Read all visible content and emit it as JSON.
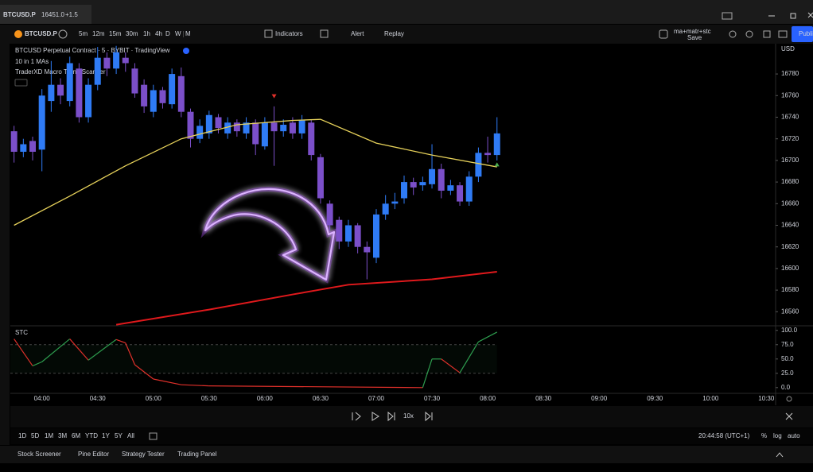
{
  "window_tab": {
    "symbol": "BTCUSD.P",
    "price": "16451.0",
    "change": "+1.5"
  },
  "toolbar": {
    "symbol": "BTCUSD.P",
    "intervals": [
      "5m",
      "12m",
      "15m",
      "30m",
      "1h",
      "4h",
      "D",
      "W",
      "M"
    ],
    "indicators": "Indicators",
    "alert": "Alert",
    "replay": "Replay",
    "layout_name": "ma+matr+stc",
    "layout_status": "Save",
    "publish": "Publi"
  },
  "chart_data": {
    "type": "candlestick",
    "title": "BTCUSD Perpetual Contract · 5 · BYBIT · TradingView",
    "indicators": [
      "10 in 1 MAs",
      "TraderXD Macro Trend Scanner"
    ],
    "currency": "USD",
    "x": [
      "03:45",
      "03:50",
      "03:55",
      "04:00",
      "04:05",
      "04:10",
      "04:15",
      "04:20",
      "04:25",
      "04:30",
      "04:35",
      "04:40",
      "04:45",
      "04:50",
      "04:55",
      "05:00",
      "05:05",
      "05:10",
      "05:15",
      "05:20",
      "05:25",
      "05:30",
      "05:35",
      "05:40",
      "05:45",
      "05:50",
      "05:55",
      "06:00",
      "06:05",
      "06:10",
      "06:15",
      "06:20",
      "06:25",
      "06:30",
      "06:35",
      "06:40",
      "06:45",
      "06:50",
      "06:55",
      "07:00",
      "07:05",
      "07:10",
      "07:15",
      "07:20",
      "07:25",
      "07:30",
      "07:35",
      "07:40",
      "07:45",
      "07:50",
      "07:55",
      "08:00",
      "08:05"
    ],
    "open": [
      16727,
      16708,
      16718,
      16710,
      16755,
      16770,
      16755,
      16785,
      16740,
      16770,
      16795,
      16785,
      16795,
      16785,
      16770,
      16745,
      16765,
      16752,
      16778,
      16745,
      16720,
      16725,
      16740,
      16725,
      16735,
      16725,
      16735,
      16713,
      16735,
      16727,
      16735,
      16725,
      16735,
      16703,
      16660,
      16645,
      16625,
      16640,
      16620,
      16610,
      16650,
      16660,
      16665,
      16680,
      16677,
      16678,
      16692,
      16672,
      16677,
      16662,
      16685,
      16707,
      16705
    ],
    "high": [
      16732,
      16720,
      16722,
      16766,
      16792,
      16776,
      16796,
      16790,
      16776,
      16805,
      16800,
      16806,
      16800,
      16790,
      16775,
      16770,
      16768,
      16785,
      16786,
      16748,
      16738,
      16746,
      16743,
      16740,
      16738,
      16740,
      16738,
      16740,
      16750,
      16738,
      16740,
      16742,
      16738,
      16706,
      16663,
      16648,
      16645,
      16642,
      16625,
      16655,
      16668,
      16670,
      16686,
      16684,
      16685,
      16715,
      16697,
      16682,
      16680,
      16690,
      16712,
      16722,
      16740
    ],
    "low": [
      16698,
      16703,
      16700,
      16690,
      16745,
      16752,
      16750,
      16735,
      16735,
      16765,
      16778,
      16780,
      16782,
      16758,
      16744,
      16740,
      16748,
      16748,
      16740,
      16712,
      16716,
      16720,
      16725,
      16720,
      16722,
      16720,
      16705,
      16710,
      16695,
      16722,
      16720,
      16720,
      16700,
      16660,
      16635,
      16618,
      16620,
      16614,
      16590,
      16605,
      16645,
      16655,
      16660,
      16668,
      16672,
      16674,
      16665,
      16668,
      16658,
      16658,
      16680,
      16698,
      16700
    ],
    "close": [
      16708,
      16715,
      16708,
      16760,
      16770,
      16760,
      16790,
      16740,
      16770,
      16795,
      16785,
      16800,
      16790,
      16762,
      16750,
      16765,
      16753,
      16780,
      16745,
      16720,
      16732,
      16742,
      16730,
      16735,
      16727,
      16735,
      16715,
      16735,
      16727,
      16733,
      16725,
      16737,
      16705,
      16665,
      16640,
      16625,
      16640,
      16620,
      16615,
      16650,
      16660,
      16662,
      16680,
      16675,
      16680,
      16692,
      16672,
      16677,
      16662,
      16685,
      16707,
      16705,
      16725
    ],
    "up_color": "#2f7bf5",
    "down_color": "#7b4fc9",
    "overlays": [
      {
        "color": "#e6d15a",
        "x": [
          "03:45",
          "04:15",
          "04:45",
          "05:15",
          "05:45",
          "06:15",
          "06:30",
          "07:00",
          "07:30",
          "08:05"
        ],
        "values": [
          16640,
          16667,
          16695,
          16720,
          16733,
          16737,
          16738,
          16716,
          16705,
          16694
        ]
      },
      {
        "color": "#e0191c",
        "x": [
          "04:40",
          "05:30",
          "06:15",
          "06:45",
          "07:30",
          "08:05"
        ],
        "values": [
          16548,
          16562,
          16576,
          16585,
          16590,
          16597
        ]
      }
    ],
    "markers": [
      {
        "x": "06:05",
        "value": 16759,
        "color": "#e0302a",
        "shape": "down"
      },
      {
        "x": "08:05",
        "value": 16696,
        "color": "#4caf50",
        "shape": "up"
      }
    ],
    "xlim": [
      "03:43",
      "10:35"
    ],
    "xticks": [
      "04:00",
      "04:30",
      "05:00",
      "05:30",
      "06:00",
      "06:30",
      "07:00",
      "07:30",
      "08:00",
      "08:30",
      "09:00",
      "09:30",
      "10:00",
      "10:30"
    ],
    "ylim": [
      16547,
      16808
    ],
    "yticks": [
      16560,
      16580,
      16600,
      16620,
      16640,
      16660,
      16680,
      16700,
      16720,
      16740,
      16760,
      16780
    ],
    "stc": {
      "title": "STC",
      "ylim": [
        -10,
        108
      ],
      "yticks": [
        {
          "value": 0,
          "label": "0.0"
        },
        {
          "value": 25,
          "label": "25.0"
        },
        {
          "value": 50,
          "label": "50.0"
        },
        {
          "value": 75,
          "label": "75.0"
        },
        {
          "value": 100,
          "label": "100.0"
        }
      ],
      "levels": [
        25,
        75
      ],
      "x": [
        "03:45",
        "03:55",
        "04:00",
        "04:15",
        "04:25",
        "04:40",
        "04:45",
        "04:50",
        "05:00",
        "05:15",
        "05:30",
        "07:25",
        "07:30",
        "07:35",
        "07:45",
        "07:55",
        "08:05"
      ],
      "values": [
        85,
        38,
        45,
        85,
        48,
        84,
        78,
        40,
        15,
        5,
        3,
        0,
        50,
        50,
        26,
        80,
        97
      ],
      "rise_color": "#2e9e4f",
      "fall_color": "#e0302a"
    }
  },
  "replay_bar": {
    "speed": "10x"
  },
  "range_bar": {
    "ranges": [
      "1D",
      "5D",
      "1M",
      "3M",
      "6M",
      "YTD",
      "1Y",
      "5Y",
      "All"
    ],
    "clock": "20:44:58 (UTC+1)",
    "options": [
      "%",
      "log",
      "auto"
    ]
  },
  "bottom_tabs": [
    "Stock Screener",
    "Pine Editor",
    "Strategy Tester",
    "Trading Panel"
  ]
}
